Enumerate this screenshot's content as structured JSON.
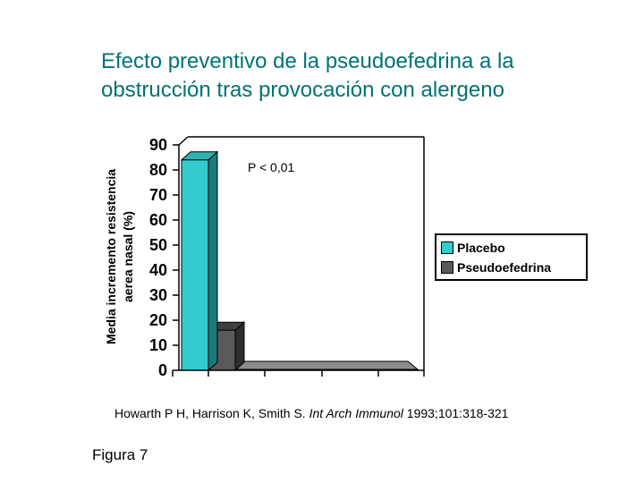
{
  "slide": {
    "title_line1": "Efecto preventivo de la pseudoefedrina a la",
    "title_line2": "obstrucción tras provocación con alergeno",
    "title_color": "#007373",
    "figure_label": "Figura 7",
    "citation": {
      "authors": "Howarth P H, Harrison K, Smith S. ",
      "journal_italic": "Int Arch Immunol",
      "ref": " 1993;101:318-321"
    }
  },
  "chart_data": {
    "type": "bar",
    "style": "3d-column",
    "title": "",
    "xlabel": "",
    "ylabel_line1": "Media incremento resistencia",
    "ylabel_line2": "aerea nasal (%)",
    "categories": [
      "provocación con alergeno"
    ],
    "series": [
      {
        "name": "Placebo",
        "values": [
          84
        ],
        "color": "#33CCCC",
        "top_color": "#2DB3B3",
        "side_color": "#1B7B7B"
      },
      {
        "name": "Pseudoefedrina",
        "values": [
          16
        ],
        "color": "#595959",
        "top_color": "#3F3F3F",
        "side_color": "#2E2E2E"
      }
    ],
    "annotation": "P < 0,01",
    "ylim": [
      0,
      90
    ],
    "ytick_step": 10,
    "ytick_labels": [
      "90",
      "80",
      "70",
      "60",
      "50",
      "40",
      "30",
      "20",
      "10",
      "0"
    ],
    "grid": "off",
    "legend_position": "right",
    "floor_color": "#8C8C8C",
    "plot_background": "#FFFFFF"
  }
}
